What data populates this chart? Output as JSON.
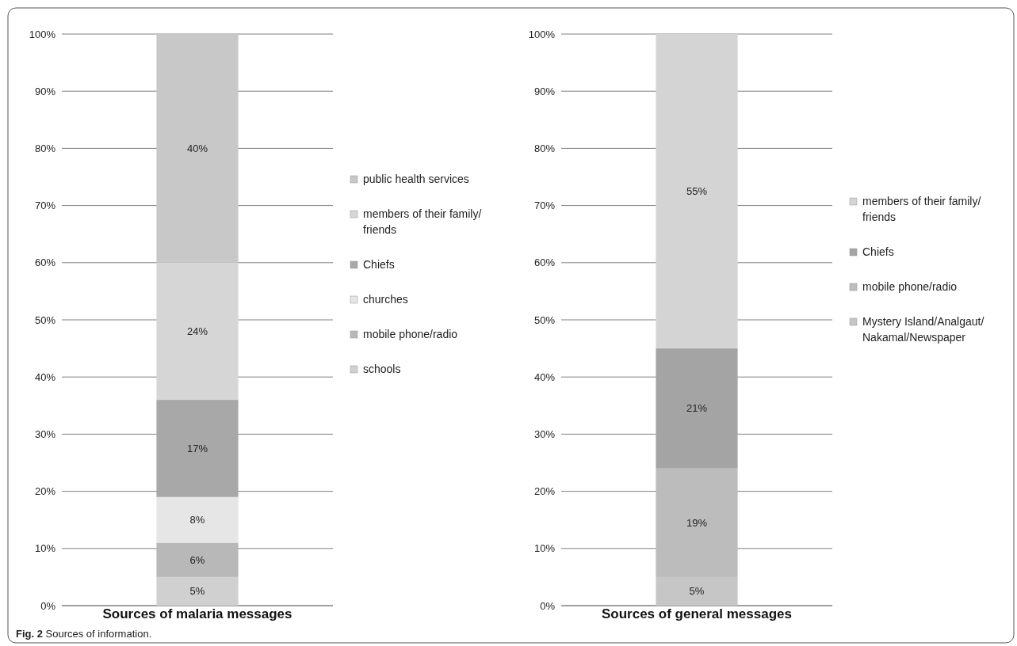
{
  "chart_data": [
    {
      "type": "bar",
      "stacked": true,
      "categories": [
        "Sources of malaria messages"
      ],
      "ylim": [
        0,
        100
      ],
      "yticks": [
        {
          "value": 0,
          "label": "0%"
        },
        {
          "value": 10,
          "label": "10%"
        },
        {
          "value": 20,
          "label": "20%"
        },
        {
          "value": 30,
          "label": "30%"
        },
        {
          "value": 40,
          "label": "40%"
        },
        {
          "value": 50,
          "label": "50%"
        },
        {
          "value": 60,
          "label": "60%"
        },
        {
          "value": 70,
          "label": "70%"
        },
        {
          "value": 80,
          "label": "80%"
        },
        {
          "value": 90,
          "label": "90%"
        },
        {
          "value": 100,
          "label": "100%"
        }
      ],
      "grid": "y",
      "legend": "right",
      "series": [
        {
          "name": "schools",
          "color": "#d0d0d0",
          "values": [
            5
          ],
          "value_labels": [
            "5%"
          ]
        },
        {
          "name": "mobile phone/radio",
          "color": "#b8b8b8",
          "values": [
            6
          ],
          "value_labels": [
            "6%"
          ]
        },
        {
          "name": "churches",
          "color": "#e6e6e6",
          "values": [
            8
          ],
          "value_labels": [
            "8%"
          ]
        },
        {
          "name": "Chiefs",
          "color": "#a8a8a8",
          "values": [
            17
          ],
          "value_labels": [
            "17%"
          ]
        },
        {
          "name": "members of their family/friends",
          "color": "#d6d6d6",
          "values": [
            24
          ],
          "value_labels": [
            "24%"
          ]
        },
        {
          "name": "public health services",
          "color": "#c8c8c8",
          "values": [
            40
          ],
          "value_labels": [
            "40%"
          ]
        }
      ],
      "annotations": [
        "Fig. 2 Sources of information."
      ]
    },
    {
      "type": "bar",
      "stacked": true,
      "categories": [
        "Sources of general messages"
      ],
      "ylim": [
        0,
        100
      ],
      "yticks": [
        {
          "value": 0,
          "label": "0%"
        },
        {
          "value": 10,
          "label": "10%"
        },
        {
          "value": 20,
          "label": "20%"
        },
        {
          "value": 30,
          "label": "30%"
        },
        {
          "value": 40,
          "label": "40%"
        },
        {
          "value": 50,
          "label": "50%"
        },
        {
          "value": 60,
          "label": "60%"
        },
        {
          "value": 70,
          "label": "70%"
        },
        {
          "value": 80,
          "label": "80%"
        },
        {
          "value": 90,
          "label": "90%"
        },
        {
          "value": 100,
          "label": "100%"
        }
      ],
      "grid": "y",
      "legend": "right",
      "series": [
        {
          "name": "Mystery Island/Analgaut/Nakamal/Newspaper",
          "color": "#c6c6c6",
          "values": [
            5
          ],
          "value_labels": [
            "5%"
          ]
        },
        {
          "name": "mobile phone/radio",
          "color": "#bcbcbc",
          "values": [
            19
          ],
          "value_labels": [
            "19%"
          ]
        },
        {
          "name": "Chiefs",
          "color": "#a4a4a4",
          "values": [
            21
          ],
          "value_labels": [
            "21%"
          ]
        },
        {
          "name": "members of their family/friends",
          "color": "#d4d4d4",
          "values": [
            55
          ],
          "value_labels": [
            "55%"
          ]
        }
      ]
    }
  ]
}
